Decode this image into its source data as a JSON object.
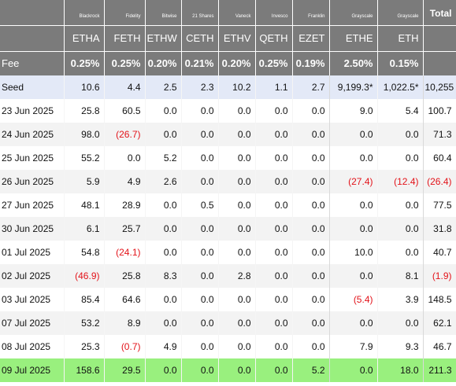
{
  "colors": {
    "header_bg": "#7b7b7b",
    "seed_bg": "#e3e9f7",
    "latest_bg": "#99f07e",
    "negative": "#e3131a"
  },
  "issuers": [
    "Blackrock",
    "Fidelity",
    "Bitwise",
    "21 Shares",
    "Vaneck",
    "Invesco",
    "Franklin",
    "Grayscale",
    "Grayscale"
  ],
  "total_label": "Total",
  "tickers": [
    "ETHA",
    "FETH",
    "ETHW",
    "CETH",
    "ETHV",
    "QETH",
    "EZET",
    "ETHE",
    "ETH"
  ],
  "fee_label": "Fee",
  "fees": [
    "0.25%",
    "0.25%",
    "0.20%",
    "0.21%",
    "0.20%",
    "0.25%",
    "0.19%",
    "2.50%",
    "0.15%"
  ],
  "rows": [
    {
      "label": "Seed",
      "values": [
        "10.6",
        "4.4",
        "2.5",
        "2.3",
        "10.2",
        "1.1",
        "2.7",
        "9,199.3*",
        "1,022.5*",
        "10,255"
      ]
    },
    {
      "label": "23 Jun 2025",
      "values": [
        "25.8",
        "60.5",
        "0.0",
        "0.0",
        "0.0",
        "0.0",
        "0.0",
        "9.0",
        "5.4",
        "100.7"
      ]
    },
    {
      "label": "24 Jun 2025",
      "values": [
        "98.0",
        "(26.7)",
        "0.0",
        "0.0",
        "0.0",
        "0.0",
        "0.0",
        "0.0",
        "0.0",
        "71.3"
      ]
    },
    {
      "label": "25 Jun 2025",
      "values": [
        "55.2",
        "0.0",
        "5.2",
        "0.0",
        "0.0",
        "0.0",
        "0.0",
        "0.0",
        "0.0",
        "60.4"
      ]
    },
    {
      "label": "26 Jun 2025",
      "values": [
        "5.9",
        "4.9",
        "2.6",
        "0.0",
        "0.0",
        "0.0",
        "0.0",
        "(27.4)",
        "(12.4)",
        "(26.4)"
      ]
    },
    {
      "label": "27 Jun 2025",
      "values": [
        "48.1",
        "28.9",
        "0.0",
        "0.5",
        "0.0",
        "0.0",
        "0.0",
        "0.0",
        "0.0",
        "77.5"
      ]
    },
    {
      "label": "30 Jun 2025",
      "values": [
        "6.1",
        "25.7",
        "0.0",
        "0.0",
        "0.0",
        "0.0",
        "0.0",
        "0.0",
        "0.0",
        "31.8"
      ]
    },
    {
      "label": "01 Jul 2025",
      "values": [
        "54.8",
        "(24.1)",
        "0.0",
        "0.0",
        "0.0",
        "0.0",
        "0.0",
        "10.0",
        "0.0",
        "40.7"
      ]
    },
    {
      "label": "02 Jul 2025",
      "values": [
        "(46.9)",
        "25.8",
        "8.3",
        "0.0",
        "2.8",
        "0.0",
        "0.0",
        "0.0",
        "8.1",
        "(1.9)"
      ]
    },
    {
      "label": "03 Jul 2025",
      "values": [
        "85.4",
        "64.6",
        "0.0",
        "0.0",
        "0.0",
        "0.0",
        "0.0",
        "(5.4)",
        "3.9",
        "148.5"
      ]
    },
    {
      "label": "07 Jul 2025",
      "values": [
        "53.2",
        "8.9",
        "0.0",
        "0.0",
        "0.0",
        "0.0",
        "0.0",
        "0.0",
        "0.0",
        "62.1"
      ]
    },
    {
      "label": "08 Jul 2025",
      "values": [
        "25.3",
        "(0.7)",
        "4.9",
        "0.0",
        "0.0",
        "0.0",
        "0.0",
        "7.9",
        "9.3",
        "46.7"
      ]
    },
    {
      "label": "09 Jul 2025",
      "values": [
        "158.6",
        "29.5",
        "0.0",
        "0.0",
        "0.0",
        "0.0",
        "5.2",
        "0.0",
        "18.0",
        "211.3"
      ]
    }
  ]
}
